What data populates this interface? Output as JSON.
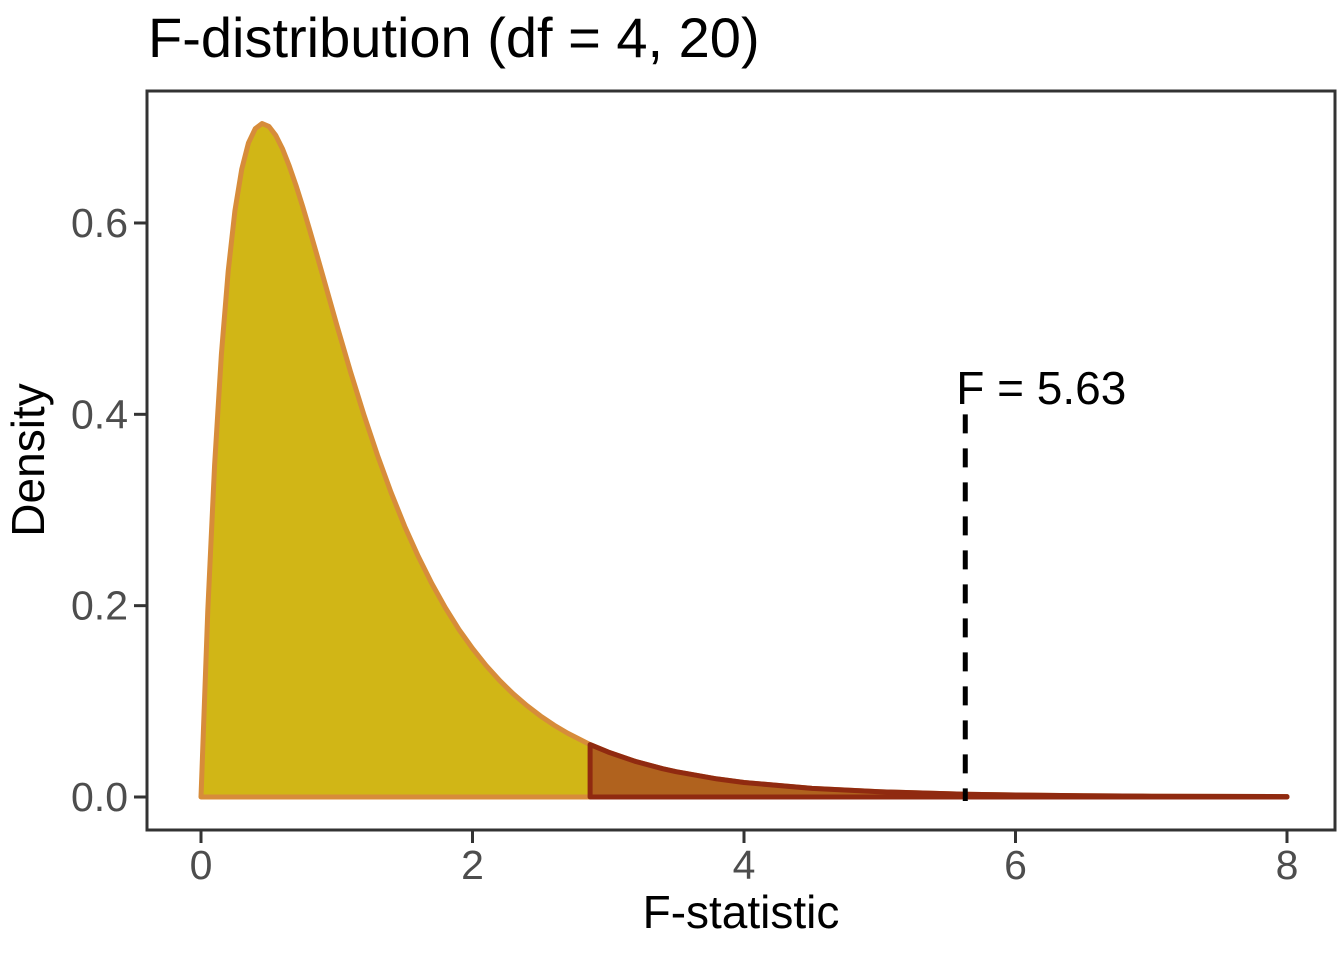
{
  "chart_data": {
    "type": "area",
    "title": "F-distribution (df = 4, 20)",
    "xlabel": "F-statistic",
    "ylabel": "Density",
    "xlim": [
      0,
      8
    ],
    "ylim": [
      0,
      0.74
    ],
    "grid": false,
    "x_ticks": [
      0,
      2,
      4,
      6,
      8
    ],
    "x_tick_labels": [
      "0",
      "2",
      "4",
      "6",
      "8"
    ],
    "y_ticks": [
      0.0,
      0.2,
      0.4,
      0.6
    ],
    "y_tick_labels": [
      "0.0",
      "0.2",
      "0.4",
      "0.6"
    ],
    "df1": 4,
    "df2": 20,
    "critical_value": 2.866,
    "f_statistic": 5.63,
    "curve": {
      "x": [
        0,
        0.05,
        0.1,
        0.15,
        0.2,
        0.25,
        0.3,
        0.35,
        0.4,
        0.45,
        0.5,
        0.55,
        0.6,
        0.65,
        0.7,
        0.75,
        0.8,
        0.85,
        0.9,
        0.95,
        1.0,
        1.1,
        1.2,
        1.3,
        1.4,
        1.5,
        1.6,
        1.7,
        1.8,
        1.9,
        2.0,
        2.1,
        2.2,
        2.3,
        2.4,
        2.5,
        2.6,
        2.7,
        2.866,
        3.0,
        3.2,
        3.4,
        3.5,
        3.8,
        4.0,
        4.5,
        5.0,
        5.63,
        6.0,
        6.5,
        7.0,
        7.5,
        8.0
      ],
      "density": [
        0,
        0.1952,
        0.3469,
        0.4629,
        0.5497,
        0.6126,
        0.656,
        0.6838,
        0.6986,
        0.704,
        0.701,
        0.6917,
        0.6777,
        0.6598,
        0.6393,
        0.6168,
        0.593,
        0.5684,
        0.5434,
        0.5183,
        0.4933,
        0.4452,
        0.3996,
        0.3572,
        0.3185,
        0.2832,
        0.2516,
        0.2232,
        0.1978,
        0.1752,
        0.1553,
        0.1375,
        0.1217,
        0.1079,
        0.0956,
        0.0848,
        0.0752,
        0.0668,
        0.0548,
        0.0469,
        0.0372,
        0.0296,
        0.0264,
        0.0189,
        0.0152,
        0.009,
        0.0054,
        0.0029,
        0.0021,
        0.0013,
        0.0008,
        0.0006,
        0.0004
      ]
    },
    "regions": [
      {
        "name": "body-area",
        "x_from": 0,
        "x_to": 8,
        "fill": "#D1B616",
        "stroke": "#D78C3A"
      },
      {
        "name": "tail-area",
        "x_from": 2.866,
        "x_to": 8,
        "fill": "#B0621E",
        "stroke": "#902A10"
      }
    ],
    "vline": {
      "x": 5.63,
      "y_from": 0,
      "y_to": 0.4,
      "label": "F = 5.63",
      "label_x": 6.19,
      "label_y": 0.411,
      "style": "dashed",
      "color": "#000000"
    }
  },
  "colors": {
    "curve_fill": "#D1B616",
    "curve_stroke": "#D78C3A",
    "tail_fill": "#B0621E",
    "tail_stroke": "#902A10",
    "vline": "#000000",
    "tick_label": "#4D4D4D",
    "panel_border": "#333333",
    "text": "#000000",
    "background": "#FFFFFF"
  }
}
